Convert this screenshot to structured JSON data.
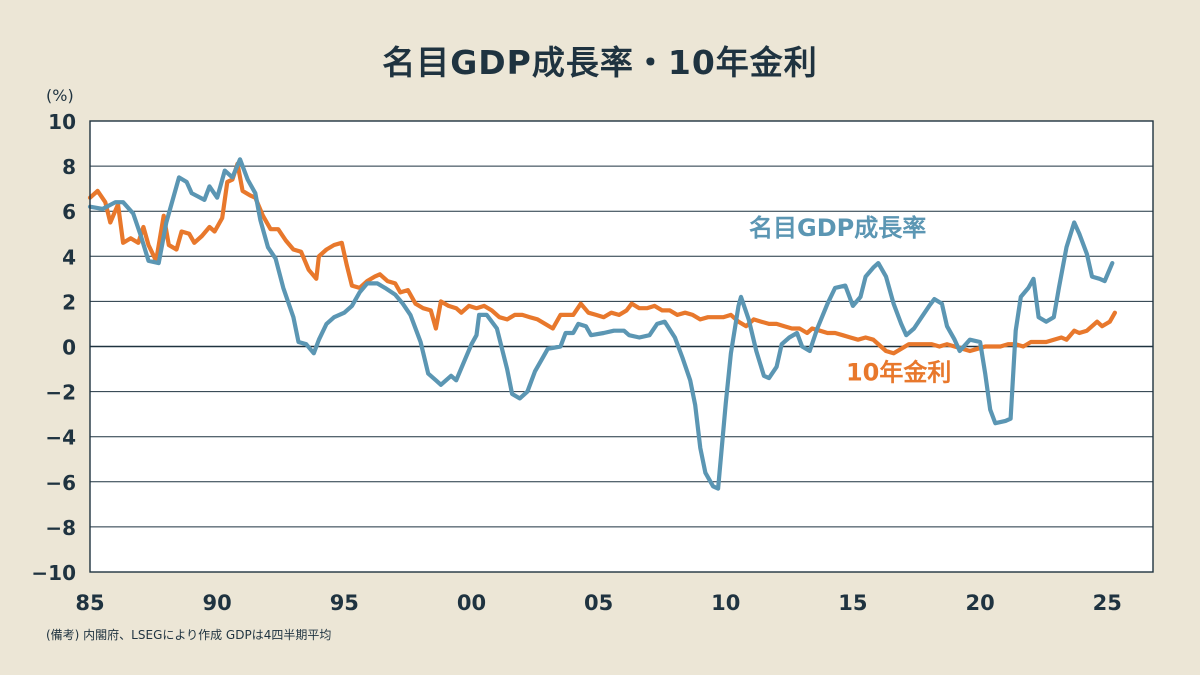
{
  "colors": {
    "background": "#ece6d6",
    "plot_background": "#ffffff",
    "gdp": "#5b96b3",
    "rate": "#e8782c",
    "text": "#1f3340"
  },
  "chart_data": {
    "type": "line",
    "title": "名目GDP成長率・10年金利",
    "ylabel": "(%)",
    "note": "(備考) 内閣府、LSEGにより作成 GDPは4四半期平均",
    "xlim": [
      1985,
      2026.8
    ],
    "ylim": [
      -10,
      10
    ],
    "x_ticks": [
      {
        "value": 1985,
        "label": "85"
      },
      {
        "value": 1990,
        "label": "90"
      },
      {
        "value": 1995,
        "label": "95"
      },
      {
        "value": 2000,
        "label": "00"
      },
      {
        "value": 2005,
        "label": "05"
      },
      {
        "value": 2010,
        "label": "10"
      },
      {
        "value": 2015,
        "label": "15"
      },
      {
        "value": 2020,
        "label": "20"
      },
      {
        "value": 2025,
        "label": "25"
      }
    ],
    "y_ticks": [
      {
        "value": 10,
        "label": "10"
      },
      {
        "value": 8,
        "label": "8"
      },
      {
        "value": 6,
        "label": "6"
      },
      {
        "value": 4,
        "label": "4"
      },
      {
        "value": 2,
        "label": "2"
      },
      {
        "value": 0,
        "label": "0"
      },
      {
        "value": -2,
        "label": "−2"
      },
      {
        "value": -4,
        "label": "−4"
      },
      {
        "value": -6,
        "label": "−6"
      },
      {
        "value": -8,
        "label": "−8"
      },
      {
        "value": -10,
        "label": "−10"
      }
    ],
    "grid": "horizontal",
    "series": [
      {
        "name": "名目GDP成長率",
        "color": "#5b96b3",
        "label_position": {
          "x": 2014.4,
          "y": 4.9
        },
        "points": [
          [
            1985,
            6.2
          ],
          [
            1985.5,
            6.1
          ],
          [
            1986,
            6.4
          ],
          [
            1986.3,
            6.4
          ],
          [
            1986.7,
            5.9
          ],
          [
            1987,
            4.9
          ],
          [
            1987.3,
            3.8
          ],
          [
            1987.7,
            3.7
          ],
          [
            1988,
            5.5
          ],
          [
            1988.5,
            7.5
          ],
          [
            1988.8,
            7.3
          ],
          [
            1989,
            6.8
          ],
          [
            1989.5,
            6.5
          ],
          [
            1989.7,
            7.1
          ],
          [
            1990,
            6.6
          ],
          [
            1990.3,
            7.8
          ],
          [
            1990.6,
            7.5
          ],
          [
            1990.9,
            8.3
          ],
          [
            1991.2,
            7.4
          ],
          [
            1991.5,
            6.8
          ],
          [
            1991.7,
            5.6
          ],
          [
            1992,
            4.4
          ],
          [
            1992.3,
            3.9
          ],
          [
            1992.6,
            2.6
          ],
          [
            1993,
            1.3
          ],
          [
            1993.2,
            0.2
          ],
          [
            1993.5,
            0.1
          ],
          [
            1993.8,
            -0.3
          ],
          [
            1994,
            0.3
          ],
          [
            1994.3,
            1.0
          ],
          [
            1994.6,
            1.3
          ],
          [
            1995,
            1.5
          ],
          [
            1995.3,
            1.8
          ],
          [
            1995.6,
            2.4
          ],
          [
            1995.9,
            2.8
          ],
          [
            1996.3,
            2.8
          ],
          [
            1996.6,
            2.6
          ],
          [
            1997,
            2.3
          ],
          [
            1997.3,
            1.9
          ],
          [
            1997.6,
            1.4
          ],
          [
            1998,
            0.2
          ],
          [
            1998.3,
            -1.2
          ],
          [
            1998.6,
            -1.5
          ],
          [
            1998.8,
            -1.7
          ],
          [
            1999.2,
            -1.3
          ],
          [
            1999.4,
            -1.5
          ],
          [
            1999.7,
            -0.7
          ],
          [
            2000,
            0.1
          ],
          [
            2000.2,
            0.5
          ],
          [
            2000.3,
            1.4
          ],
          [
            2000.6,
            1.4
          ],
          [
            2001,
            0.8
          ],
          [
            2001.4,
            -1.0
          ],
          [
            2001.6,
            -2.1
          ],
          [
            2001.9,
            -2.3
          ],
          [
            2002.2,
            -2.0
          ],
          [
            2002.5,
            -1.1
          ],
          [
            2002.8,
            -0.5
          ],
          [
            2003,
            -0.1
          ],
          [
            2003.5,
            0.0
          ],
          [
            2003.7,
            0.6
          ],
          [
            2004,
            0.6
          ],
          [
            2004.2,
            1.0
          ],
          [
            2004.5,
            0.9
          ],
          [
            2004.7,
            0.5
          ],
          [
            2005.2,
            0.6
          ],
          [
            2005.6,
            0.7
          ],
          [
            2006,
            0.7
          ],
          [
            2006.2,
            0.5
          ],
          [
            2006.6,
            0.4
          ],
          [
            2007,
            0.5
          ],
          [
            2007.3,
            1.0
          ],
          [
            2007.6,
            1.1
          ],
          [
            2008,
            0.4
          ],
          [
            2008.3,
            -0.5
          ],
          [
            2008.6,
            -1.5
          ],
          [
            2008.8,
            -2.6
          ],
          [
            2009,
            -4.5
          ],
          [
            2009.2,
            -5.6
          ],
          [
            2009.5,
            -6.2
          ],
          [
            2009.7,
            -6.3
          ],
          [
            2010,
            -2.5
          ],
          [
            2010.2,
            -0.3
          ],
          [
            2010.5,
            1.8
          ],
          [
            2010.6,
            2.2
          ],
          [
            2010.9,
            1.2
          ],
          [
            2011.2,
            -0.2
          ],
          [
            2011.5,
            -1.3
          ],
          [
            2011.7,
            -1.4
          ],
          [
            2012,
            -0.9
          ],
          [
            2012.2,
            0.1
          ],
          [
            2012.5,
            0.4
          ],
          [
            2012.8,
            0.6
          ],
          [
            2013,
            0.0
          ],
          [
            2013.3,
            -0.2
          ],
          [
            2013.6,
            0.8
          ],
          [
            2014,
            1.9
          ],
          [
            2014.3,
            2.6
          ],
          [
            2014.7,
            2.7
          ],
          [
            2015,
            1.8
          ],
          [
            2015.3,
            2.2
          ],
          [
            2015.5,
            3.1
          ],
          [
            2015.8,
            3.5
          ],
          [
            2016,
            3.7
          ],
          [
            2016.3,
            3.1
          ],
          [
            2016.6,
            1.9
          ],
          [
            2016.9,
            1.0
          ],
          [
            2017.1,
            0.5
          ],
          [
            2017.4,
            0.8
          ],
          [
            2017.7,
            1.3
          ],
          [
            2018,
            1.8
          ],
          [
            2018.2,
            2.1
          ],
          [
            2018.5,
            1.9
          ],
          [
            2018.7,
            0.9
          ],
          [
            2019,
            0.3
          ],
          [
            2019.2,
            -0.2
          ],
          [
            2019.6,
            0.3
          ],
          [
            2020,
            0.2
          ],
          [
            2020.2,
            -1.2
          ],
          [
            2020.4,
            -2.8
          ],
          [
            2020.6,
            -3.4
          ],
          [
            2021,
            -3.3
          ],
          [
            2021.2,
            -3.2
          ],
          [
            2021.4,
            0.7
          ],
          [
            2021.6,
            2.2
          ],
          [
            2021.9,
            2.6
          ],
          [
            2022.1,
            3.0
          ],
          [
            2022.3,
            1.3
          ],
          [
            2022.6,
            1.1
          ],
          [
            2022.9,
            1.3
          ],
          [
            2023.1,
            2.6
          ],
          [
            2023.4,
            4.4
          ],
          [
            2023.7,
            5.5
          ],
          [
            2023.9,
            5.0
          ],
          [
            2024.2,
            4.1
          ],
          [
            2024.4,
            3.1
          ],
          [
            2024.7,
            3.0
          ],
          [
            2024.9,
            2.9
          ],
          [
            2025.2,
            3.7
          ]
        ]
      },
      {
        "name": "10年金利",
        "color": "#e8782c",
        "label_position": {
          "x": 2016.8,
          "y": -1.5
        },
        "points": [
          [
            1985,
            6.6
          ],
          [
            1985.3,
            6.9
          ],
          [
            1985.6,
            6.4
          ],
          [
            1985.8,
            5.5
          ],
          [
            1986.1,
            6.3
          ],
          [
            1986.3,
            4.6
          ],
          [
            1986.6,
            4.8
          ],
          [
            1986.9,
            4.6
          ],
          [
            1987.1,
            5.3
          ],
          [
            1987.3,
            4.5
          ],
          [
            1987.6,
            3.8
          ],
          [
            1987.9,
            5.8
          ],
          [
            1988.1,
            4.5
          ],
          [
            1988.4,
            4.3
          ],
          [
            1988.6,
            5.1
          ],
          [
            1988.9,
            5.0
          ],
          [
            1989.1,
            4.6
          ],
          [
            1989.4,
            4.9
          ],
          [
            1989.7,
            5.3
          ],
          [
            1989.9,
            5.1
          ],
          [
            1990.2,
            5.7
          ],
          [
            1990.4,
            7.3
          ],
          [
            1990.6,
            7.4
          ],
          [
            1990.8,
            8.1
          ],
          [
            1991,
            6.9
          ],
          [
            1991.3,
            6.7
          ],
          [
            1991.5,
            6.6
          ],
          [
            1991.8,
            5.8
          ],
          [
            1992.1,
            5.2
          ],
          [
            1992.4,
            5.2
          ],
          [
            1992.7,
            4.7
          ],
          [
            1993,
            4.3
          ],
          [
            1993.3,
            4.2
          ],
          [
            1993.6,
            3.4
          ],
          [
            1993.9,
            3.0
          ],
          [
            1994,
            4.0
          ],
          [
            1994.3,
            4.3
          ],
          [
            1994.6,
            4.5
          ],
          [
            1994.9,
            4.6
          ],
          [
            1995.1,
            3.6
          ],
          [
            1995.3,
            2.7
          ],
          [
            1995.6,
            2.6
          ],
          [
            1995.9,
            2.9
          ],
          [
            1996.2,
            3.1
          ],
          [
            1996.4,
            3.2
          ],
          [
            1996.7,
            2.9
          ],
          [
            1997,
            2.8
          ],
          [
            1997.2,
            2.4
          ],
          [
            1997.5,
            2.5
          ],
          [
            1997.8,
            1.9
          ],
          [
            1998.1,
            1.7
          ],
          [
            1998.4,
            1.6
          ],
          [
            1998.6,
            0.8
          ],
          [
            1998.8,
            2.0
          ],
          [
            1999.1,
            1.8
          ],
          [
            1999.4,
            1.7
          ],
          [
            1999.6,
            1.5
          ],
          [
            1999.9,
            1.8
          ],
          [
            2000.2,
            1.7
          ],
          [
            2000.5,
            1.8
          ],
          [
            2000.8,
            1.6
          ],
          [
            2001.1,
            1.3
          ],
          [
            2001.4,
            1.2
          ],
          [
            2001.7,
            1.4
          ],
          [
            2002,
            1.4
          ],
          [
            2002.3,
            1.3
          ],
          [
            2002.6,
            1.2
          ],
          [
            2002.9,
            1.0
          ],
          [
            2003.2,
            0.8
          ],
          [
            2003.5,
            1.4
          ],
          [
            2003.8,
            1.4
          ],
          [
            2004,
            1.4
          ],
          [
            2004.3,
            1.9
          ],
          [
            2004.6,
            1.5
          ],
          [
            2004.9,
            1.4
          ],
          [
            2005.2,
            1.3
          ],
          [
            2005.5,
            1.5
          ],
          [
            2005.8,
            1.4
          ],
          [
            2006.1,
            1.6
          ],
          [
            2006.3,
            1.9
          ],
          [
            2006.6,
            1.7
          ],
          [
            2006.9,
            1.7
          ],
          [
            2007.2,
            1.8
          ],
          [
            2007.5,
            1.6
          ],
          [
            2007.8,
            1.6
          ],
          [
            2008.1,
            1.4
          ],
          [
            2008.4,
            1.5
          ],
          [
            2008.7,
            1.4
          ],
          [
            2009,
            1.2
          ],
          [
            2009.3,
            1.3
          ],
          [
            2009.6,
            1.3
          ],
          [
            2009.9,
            1.3
          ],
          [
            2010.2,
            1.4
          ],
          [
            2010.5,
            1.1
          ],
          [
            2010.8,
            0.9
          ],
          [
            2011.1,
            1.2
          ],
          [
            2011.4,
            1.1
          ],
          [
            2011.7,
            1.0
          ],
          [
            2012,
            1.0
          ],
          [
            2012.3,
            0.9
          ],
          [
            2012.6,
            0.8
          ],
          [
            2012.9,
            0.8
          ],
          [
            2013.2,
            0.6
          ],
          [
            2013.4,
            0.8
          ],
          [
            2013.7,
            0.7
          ],
          [
            2014,
            0.6
          ],
          [
            2014.3,
            0.6
          ],
          [
            2014.6,
            0.5
          ],
          [
            2014.9,
            0.4
          ],
          [
            2015.2,
            0.3
          ],
          [
            2015.5,
            0.4
          ],
          [
            2015.8,
            0.3
          ],
          [
            2016.1,
            0.0
          ],
          [
            2016.3,
            -0.2
          ],
          [
            2016.6,
            -0.3
          ],
          [
            2016.9,
            -0.1
          ],
          [
            2017.2,
            0.1
          ],
          [
            2017.5,
            0.1
          ],
          [
            2017.8,
            0.1
          ],
          [
            2018.1,
            0.1
          ],
          [
            2018.4,
            0.0
          ],
          [
            2018.7,
            0.1
          ],
          [
            2019,
            0.0
          ],
          [
            2019.3,
            -0.1
          ],
          [
            2019.6,
            -0.2
          ],
          [
            2019.9,
            -0.1
          ],
          [
            2020.2,
            0.0
          ],
          [
            2020.5,
            0.0
          ],
          [
            2020.8,
            0.0
          ],
          [
            2021.1,
            0.1
          ],
          [
            2021.4,
            0.1
          ],
          [
            2021.7,
            0.0
          ],
          [
            2022,
            0.2
          ],
          [
            2022.3,
            0.2
          ],
          [
            2022.6,
            0.2
          ],
          [
            2022.9,
            0.3
          ],
          [
            2023.2,
            0.4
          ],
          [
            2023.4,
            0.3
          ],
          [
            2023.7,
            0.7
          ],
          [
            2023.9,
            0.6
          ],
          [
            2024.2,
            0.7
          ],
          [
            2024.4,
            0.9
          ],
          [
            2024.6,
            1.1
          ],
          [
            2024.8,
            0.9
          ],
          [
            2025.1,
            1.1
          ],
          [
            2025.3,
            1.5
          ]
        ]
      }
    ]
  }
}
